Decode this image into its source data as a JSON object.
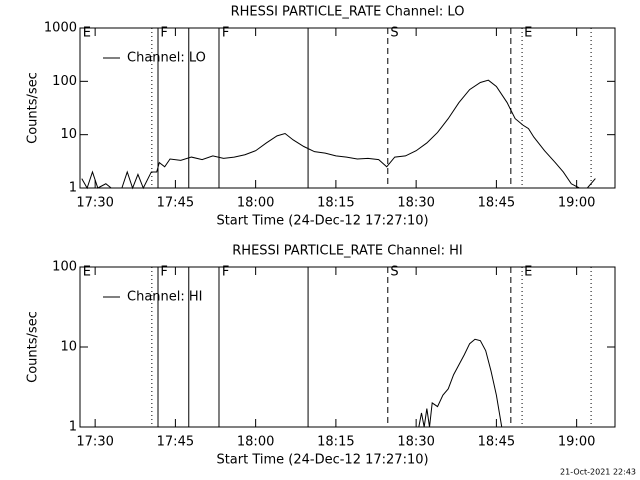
{
  "chart_data": [
    {
      "type": "line",
      "title": "RHESSI PARTICLE_RATE Channel: LO",
      "xlabel": "Start Time (24-Dec-12 17:27:10)",
      "ylabel": "Counts/sec",
      "log_y": true,
      "xlim": [
        1047.17,
        1147.17
      ],
      "ylim": [
        1,
        1000
      ],
      "xticks": [
        {
          "value": 1050,
          "label": "17:30"
        },
        {
          "value": 1065,
          "label": "17:45"
        },
        {
          "value": 1080,
          "label": "18:00"
        },
        {
          "value": 1095,
          "label": "18:15"
        },
        {
          "value": 1110,
          "label": "18:30"
        },
        {
          "value": 1125,
          "label": "18:45"
        },
        {
          "value": 1140,
          "label": "19:00"
        }
      ],
      "yticks": [
        1,
        10,
        100,
        1000
      ],
      "flags": [
        {
          "x": 1047.5,
          "label": "E"
        },
        {
          "x": 1062,
          "label": "F"
        },
        {
          "x": 1073.5,
          "label": "F"
        },
        {
          "x": 1105,
          "label": "S"
        },
        {
          "x": 1130,
          "label": "E"
        }
      ],
      "markers": [
        {
          "x": 1060.6,
          "style": "dotted"
        },
        {
          "x": 1061.75,
          "style": "solid"
        },
        {
          "x": 1067.5,
          "style": "solid"
        },
        {
          "x": 1073.15,
          "style": "solid"
        },
        {
          "x": 1089.8,
          "style": "solid"
        },
        {
          "x": 1104.7,
          "style": "dashed"
        },
        {
          "x": 1127.7,
          "style": "dashed"
        },
        {
          "x": 1129.8,
          "style": "dotted"
        },
        {
          "x": 1142.7,
          "style": "dotted"
        }
      ],
      "x": [
        1047.5,
        1048.5,
        1049.5,
        1050.5,
        1052,
        1053,
        1055,
        1056,
        1057,
        1058,
        1059,
        1060.5,
        1061.5,
        1062,
        1063,
        1064,
        1066,
        1068,
        1070,
        1072,
        1074,
        1076,
        1078,
        1080,
        1082,
        1084,
        1085.5,
        1087,
        1089,
        1091,
        1093,
        1095,
        1097,
        1099,
        1101,
        1103,
        1104.5,
        1106,
        1108,
        1110,
        1112,
        1114,
        1116,
        1118,
        1120,
        1122,
        1123.5,
        1125,
        1127,
        1128.5,
        1130,
        1131,
        1132,
        1134,
        1136,
        1137.5,
        1139,
        1140.5,
        1142,
        1143.5
      ],
      "series": [
        {
          "name": "Channel: LO",
          "color": "#000000",
          "values": [
            1.5,
            1,
            2,
            1,
            1.2,
            1,
            1,
            2,
            1,
            1.8,
            1,
            2,
            2,
            3,
            2.5,
            3.5,
            3.3,
            3.8,
            3.4,
            4,
            3.6,
            3.8,
            4.2,
            5,
            7,
            9.5,
            10.5,
            8,
            6,
            4.8,
            4.5,
            4,
            3.8,
            3.5,
            3.6,
            3.4,
            2.5,
            3.8,
            4,
            5,
            7,
            11,
            20,
            40,
            70,
            95,
            105,
            80,
            40,
            20,
            15,
            13,
            9,
            5,
            3,
            2,
            1.2,
            1,
            1,
            1.5
          ]
        }
      ]
    },
    {
      "type": "line",
      "title": "RHESSI PARTICLE_RATE Channel: HI",
      "xlabel": "Start Time (24-Dec-12 17:27:10)",
      "ylabel": "Counts/sec",
      "log_y": true,
      "xlim": [
        1047.17,
        1147.17
      ],
      "ylim": [
        1,
        100
      ],
      "xticks": [
        {
          "value": 1050,
          "label": "17:30"
        },
        {
          "value": 1065,
          "label": "17:45"
        },
        {
          "value": 1080,
          "label": "18:00"
        },
        {
          "value": 1095,
          "label": "18:15"
        },
        {
          "value": 1110,
          "label": "18:30"
        },
        {
          "value": 1125,
          "label": "18:45"
        },
        {
          "value": 1140,
          "label": "19:00"
        }
      ],
      "yticks": [
        1,
        10,
        100
      ],
      "flags": [
        {
          "x": 1047.5,
          "label": "E"
        },
        {
          "x": 1062,
          "label": "F"
        },
        {
          "x": 1073.5,
          "label": "F"
        },
        {
          "x": 1105,
          "label": "S"
        },
        {
          "x": 1130,
          "label": "E"
        }
      ],
      "markers": [
        {
          "x": 1060.6,
          "style": "dotted"
        },
        {
          "x": 1061.75,
          "style": "solid"
        },
        {
          "x": 1067.5,
          "style": "solid"
        },
        {
          "x": 1073.15,
          "style": "solid"
        },
        {
          "x": 1089.8,
          "style": "solid"
        },
        {
          "x": 1104.7,
          "style": "dashed"
        },
        {
          "x": 1127.7,
          "style": "dashed"
        },
        {
          "x": 1129.8,
          "style": "dotted"
        },
        {
          "x": 1142.7,
          "style": "dotted"
        }
      ],
      "x": [
        1110.5,
        1111,
        1111.5,
        1112,
        1112.5,
        1113,
        1114,
        1115,
        1116,
        1117,
        1118,
        1119,
        1120,
        1121,
        1122,
        1123,
        1124,
        1125,
        1126
      ],
      "series": [
        {
          "name": "Channel: HI",
          "color": "#000000",
          "values": [
            1,
            1.5,
            1,
            1.7,
            1,
            2,
            1.8,
            2.5,
            3,
            4.5,
            6,
            8,
            11,
            12.5,
            12,
            9,
            5,
            2.5,
            1
          ]
        }
      ]
    }
  ],
  "footer": "21-Oct-2021 22:43"
}
